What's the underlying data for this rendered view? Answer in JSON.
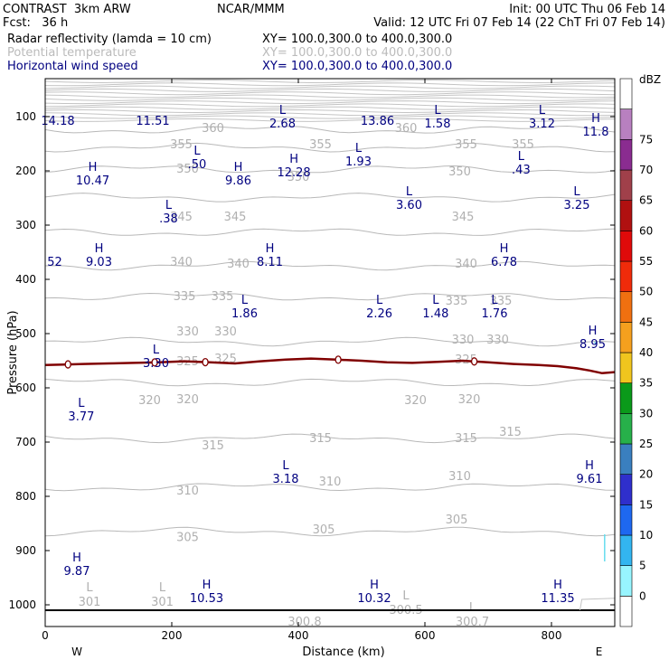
{
  "header": {
    "model": "CONTRAST  3km ARW",
    "org": "NCAR/MMM",
    "init": "Init: 00 UTC Thu 06 Feb 14",
    "fcst": "Fcst:   36 h",
    "valid": "Valid: 12 UTC Fri 07 Feb 14 (22 ChT Fri 07 Feb 14)",
    "field1": "Radar reflectivity (lamda = 10 cm)",
    "xy1": "XY= 100.0,300.0 to 400.0,300.0",
    "field2": "Potential temperature",
    "xy2": "XY= 100.0,300.0 to 400.0,300.0",
    "field3": "Horizontal wind speed",
    "xy3": "XY= 100.0,300.0 to 400.0,300.0"
  },
  "chart_data": {
    "type": "cross-section",
    "xlabel": "Distance (km)",
    "ylabel": "Pressure (hPa)",
    "xlim": [
      0,
      900
    ],
    "ylim": [
      1040,
      30
    ],
    "xticks": [
      0,
      200,
      400,
      600,
      800
    ],
    "yticks": [
      100,
      200,
      300,
      400,
      500,
      600,
      700,
      800,
      900,
      1000
    ],
    "end_labels": {
      "left": "W",
      "right": "E"
    },
    "colorbar": {
      "unit": "dBZ",
      "levels": [
        0,
        5,
        10,
        15,
        20,
        25,
        30,
        35,
        40,
        45,
        50,
        55,
        60,
        65,
        70,
        75
      ],
      "colors": [
        "#ffffff",
        "#98f5ff",
        "#33b5f0",
        "#1e68f0",
        "#2f2fcc",
        "#3a7fbf",
        "#27b04a",
        "#0a9a1a",
        "#f0c51e",
        "#f5a01e",
        "#f07010",
        "#f02b0a",
        "#e00a0a",
        "#b01010",
        "#a0404a",
        "#8a2c90",
        "#b880c0",
        "#ffffff"
      ]
    },
    "theta_contours": [
      {
        "value": 360,
        "p": 124
      },
      {
        "value": 355,
        "p": 157
      },
      {
        "value": 350,
        "p": 197
      },
      {
        "value": 345,
        "p": 249
      },
      {
        "value": 340,
        "p": 313
      },
      {
        "value": 335,
        "p": 375
      },
      {
        "value": 330,
        "p": 432
      },
      {
        "value": 325,
        "p": 515
      },
      {
        "value": 320,
        "p": 590
      },
      {
        "value": 315,
        "p": 693
      },
      {
        "value": 310,
        "p": 783
      },
      {
        "value": 305,
        "p": 865
      }
    ],
    "theta_labels": [
      {
        "text": "360",
        "x": 265,
        "p": 120
      },
      {
        "text": "360",
        "x": 570,
        "p": 120
      },
      {
        "text": "355",
        "x": 215,
        "p": 150
      },
      {
        "text": "355",
        "x": 435,
        "p": 150
      },
      {
        "text": "355",
        "x": 665,
        "p": 150
      },
      {
        "text": "355",
        "x": 755,
        "p": 150
      },
      {
        "text": "350",
        "x": 225,
        "p": 195
      },
      {
        "text": "350",
        "x": 400,
        "p": 210
      },
      {
        "text": "350",
        "x": 655,
        "p": 200
      },
      {
        "text": "345",
        "x": 215,
        "p": 283
      },
      {
        "text": "345",
        "x": 300,
        "p": 283
      },
      {
        "text": "345",
        "x": 660,
        "p": 283
      },
      {
        "text": "340",
        "x": 215,
        "p": 367
      },
      {
        "text": "340",
        "x": 305,
        "p": 370
      },
      {
        "text": "340",
        "x": 665,
        "p": 370
      },
      {
        "text": "335",
        "x": 220,
        "p": 430
      },
      {
        "text": "335",
        "x": 280,
        "p": 430
      },
      {
        "text": "335",
        "x": 650,
        "p": 438
      },
      {
        "text": "335",
        "x": 720,
        "p": 438
      },
      {
        "text": "330",
        "x": 225,
        "p": 495
      },
      {
        "text": "330",
        "x": 285,
        "p": 495
      },
      {
        "text": "330",
        "x": 660,
        "p": 510
      },
      {
        "text": "330",
        "x": 715,
        "p": 510
      },
      {
        "text": "325",
        "x": 225,
        "p": 550
      },
      {
        "text": "325",
        "x": 285,
        "p": 545
      },
      {
        "text": "325",
        "x": 665,
        "p": 547
      },
      {
        "text": "320",
        "x": 165,
        "p": 622
      },
      {
        "text": "320",
        "x": 225,
        "p": 620
      },
      {
        "text": "320",
        "x": 585,
        "p": 622
      },
      {
        "text": "320",
        "x": 670,
        "p": 620
      },
      {
        "text": "315",
        "x": 265,
        "p": 705
      },
      {
        "text": "315",
        "x": 435,
        "p": 692
      },
      {
        "text": "315",
        "x": 665,
        "p": 692
      },
      {
        "text": "315",
        "x": 735,
        "p": 680
      },
      {
        "text": "310",
        "x": 225,
        "p": 788
      },
      {
        "text": "310",
        "x": 450,
        "p": 772
      },
      {
        "text": "310",
        "x": 655,
        "p": 762
      },
      {
        "text": "305",
        "x": 225,
        "p": 874
      },
      {
        "text": "305",
        "x": 440,
        "p": 860
      },
      {
        "text": "305",
        "x": 650,
        "p": 842
      }
    ],
    "wind_extrema": [
      {
        "type": "",
        "value": "14.18",
        "x": 20,
        "p": 90
      },
      {
        "type": "",
        "value": "11.51",
        "x": 170,
        "p": 90
      },
      {
        "type": "L",
        "value": "2.68",
        "x": 375,
        "p": 95
      },
      {
        "type": "",
        "value": "13.86",
        "x": 525,
        "p": 90
      },
      {
        "type": "L",
        "value": "1.58",
        "x": 620,
        "p": 95
      },
      {
        "type": "L",
        "value": "3.12",
        "x": 785,
        "p": 95
      },
      {
        "type": "H",
        "value": "11.8",
        "x": 870,
        "p": 110
      },
      {
        "type": "L",
        "value": ".50",
        "x": 240,
        "p": 170
      },
      {
        "type": "L",
        "value": "1.93",
        "x": 495,
        "p": 165
      },
      {
        "type": "L",
        "value": ".43",
        "x": 752,
        "p": 180
      },
      {
        "type": "H",
        "value": "10.47",
        "x": 75,
        "p": 200
      },
      {
        "type": "H",
        "value": "9.86",
        "x": 305,
        "p": 200
      },
      {
        "type": "H",
        "value": "12.28",
        "x": 393,
        "p": 185
      },
      {
        "type": "L",
        "value": "3.60",
        "x": 575,
        "p": 245
      },
      {
        "type": "L",
        "value": "3.25",
        "x": 840,
        "p": 245
      },
      {
        "type": "L",
        "value": ".38",
        "x": 195,
        "p": 270
      },
      {
        "type": "",
        "value": "52",
        "x": 15,
        "p": 350
      },
      {
        "type": "H",
        "value": "9.03",
        "x": 85,
        "p": 350
      },
      {
        "type": "H",
        "value": "8.11",
        "x": 355,
        "p": 350
      },
      {
        "type": "H",
        "value": "6.78",
        "x": 725,
        "p": 350
      },
      {
        "type": "L",
        "value": "1.86",
        "x": 315,
        "p": 445
      },
      {
        "type": "L",
        "value": "2.26",
        "x": 528,
        "p": 445
      },
      {
        "type": "L",
        "value": "1.48",
        "x": 617,
        "p": 445
      },
      {
        "type": "L",
        "value": "1.76",
        "x": 710,
        "p": 445
      },
      {
        "type": "H",
        "value": "8.95",
        "x": 865,
        "p": 502
      },
      {
        "type": "L",
        "value": "3.30",
        "x": 175,
        "p": 537
      },
      {
        "type": "L",
        "value": "3.77",
        "x": 57,
        "p": 635
      },
      {
        "type": "L",
        "value": "3.18",
        "x": 380,
        "p": 750
      },
      {
        "type": "H",
        "value": "9.61",
        "x": 860,
        "p": 750
      },
      {
        "type": "H",
        "value": "9.87",
        "x": 50,
        "p": 920
      },
      {
        "type": "H",
        "value": "10.53",
        "x": 255,
        "p": 970
      },
      {
        "type": "H",
        "value": "10.32",
        "x": 520,
        "p": 970
      },
      {
        "type": "H",
        "value": "11.35",
        "x": 810,
        "p": 970
      }
    ],
    "surface_theta": [
      {
        "type": "L",
        "value": "301",
        "x": 70,
        "p": 995
      },
      {
        "type": "L",
        "value": "301",
        "x": 185,
        "p": 995
      },
      {
        "type": "",
        "value": "300.8",
        "x": 410,
        "p": 1032
      },
      {
        "type": "L",
        "value": "300.5",
        "x": 570,
        "p": 1010
      },
      {
        "type": "L",
        "value": "300.7",
        "x": 675,
        "p": 1032
      }
    ],
    "dbz_line": {
      "points": [
        [
          0,
          558
        ],
        [
          30,
          557
        ],
        [
          60,
          556
        ],
        [
          100,
          555
        ],
        [
          140,
          554
        ],
        [
          180,
          553
        ],
        [
          220,
          551
        ],
        [
          260,
          553
        ],
        [
          300,
          555
        ],
        [
          340,
          551
        ],
        [
          380,
          548
        ],
        [
          420,
          546
        ],
        [
          460,
          548
        ],
        [
          500,
          550
        ],
        [
          540,
          553
        ],
        [
          580,
          554
        ],
        [
          620,
          552
        ],
        [
          660,
          550
        ],
        [
          700,
          553
        ],
        [
          740,
          556
        ],
        [
          780,
          558
        ],
        [
          810,
          560
        ],
        [
          840,
          564
        ],
        [
          860,
          568
        ],
        [
          880,
          573
        ],
        [
          900,
          571
        ]
      ],
      "markers": [
        36,
        173,
        253,
        463,
        678
      ]
    },
    "ground_p": 1010
  }
}
